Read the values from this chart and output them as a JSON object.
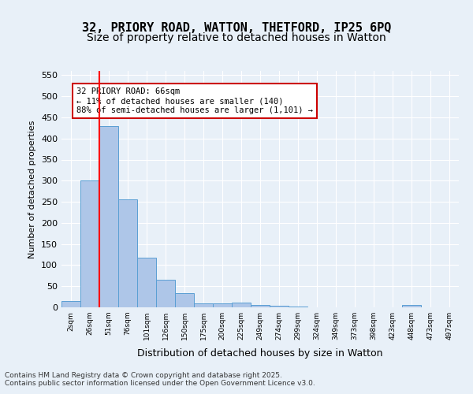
{
  "title_line1": "32, PRIORY ROAD, WATTON, THETFORD, IP25 6PQ",
  "title_line2": "Size of property relative to detached houses in Watton",
  "xlabel": "Distribution of detached houses by size in Watton",
  "ylabel": "Number of detached properties",
  "footer_line1": "Contains HM Land Registry data © Crown copyright and database right 2025.",
  "footer_line2": "Contains public sector information licensed under the Open Government Licence v3.0.",
  "bins": [
    "2sqm",
    "26sqm",
    "51sqm",
    "76sqm",
    "101sqm",
    "126sqm",
    "150sqm",
    "175sqm",
    "200sqm",
    "225sqm",
    "249sqm",
    "274sqm",
    "299sqm",
    "324sqm",
    "349sqm",
    "373sqm",
    "398sqm",
    "423sqm",
    "448sqm",
    "473sqm",
    "497sqm"
  ],
  "values": [
    15,
    300,
    430,
    255,
    118,
    65,
    33,
    10,
    10,
    12,
    5,
    3,
    1,
    0,
    0,
    0,
    0,
    0,
    5,
    0,
    0
  ],
  "bar_color": "#aec6e8",
  "bar_edge_color": "#5a9fd4",
  "red_line_x": 1.5,
  "annotation_text": "32 PRIORY ROAD: 66sqm\n← 11% of detached houses are smaller (140)\n88% of semi-detached houses are larger (1,101) →",
  "annotation_box_color": "#ffffff",
  "annotation_box_edge_color": "#cc0000",
  "ylim": [
    0,
    560
  ],
  "yticks": [
    0,
    50,
    100,
    150,
    200,
    250,
    300,
    350,
    400,
    450,
    500,
    550
  ],
  "bg_color": "#e8f0f8",
  "plot_bg_color": "#e8f0f8",
  "title_fontsize": 11,
  "subtitle_fontsize": 10
}
